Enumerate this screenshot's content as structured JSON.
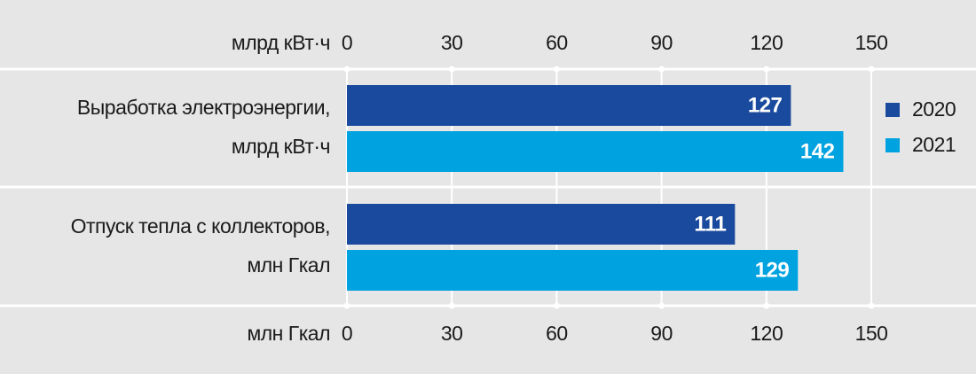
{
  "chart_data": {
    "type": "bar",
    "orientation": "horizontal",
    "x_label": "млрд кВт·ч",
    "x2_label": "млн Гкал",
    "categories": [
      [
        "Выработка электроэнергии,",
        "млрд кВт·ч"
      ],
      [
        "Отпуск тепла с коллекторов,",
        "млн Гкал"
      ]
    ],
    "series": [
      {
        "name": "2020",
        "color": "#1a4a9e",
        "values": [
          127,
          111
        ]
      },
      {
        "name": "2021",
        "color": "#00a3e0",
        "values": [
          142,
          129
        ]
      }
    ],
    "xlim": [
      0,
      150
    ],
    "xticks": [
      0,
      30,
      60,
      90,
      120,
      150
    ],
    "x2lim": [
      0,
      150
    ],
    "x2ticks": [
      0,
      30,
      60,
      90,
      120,
      150
    ],
    "grid": true,
    "legend": "right"
  }
}
